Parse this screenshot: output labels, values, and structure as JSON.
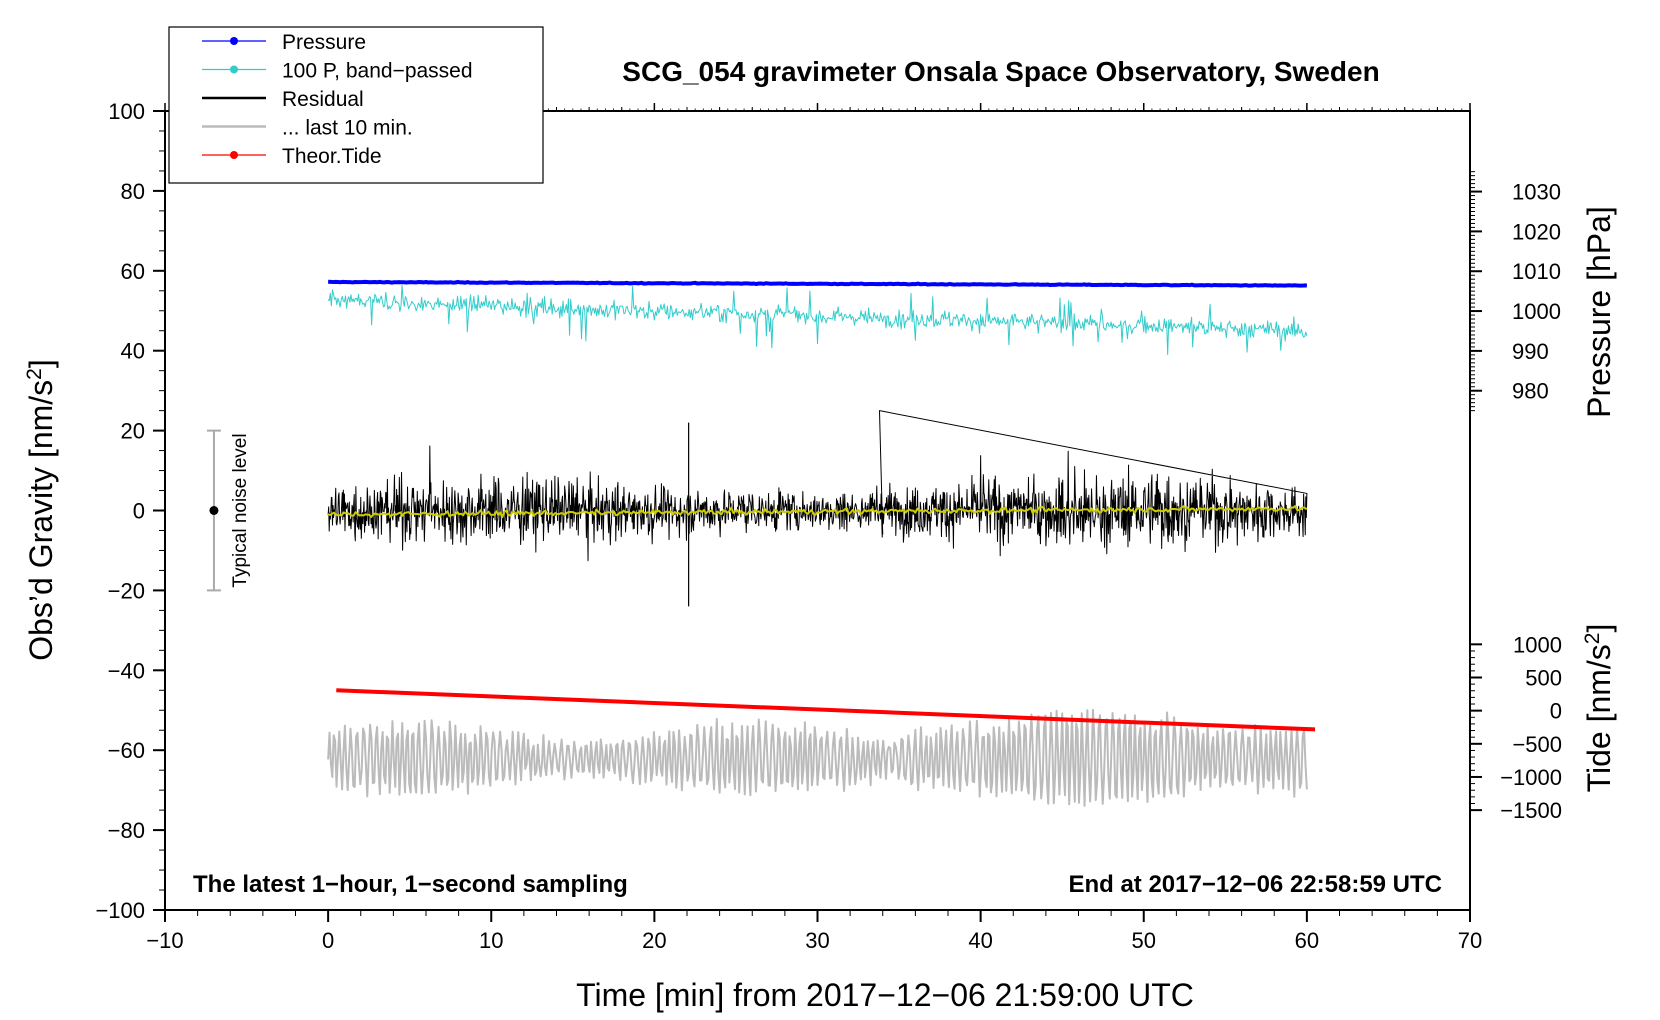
{
  "chart_data": {
    "type": "line",
    "title": "SCG_054 gravimeter Onsala Space Observatory, Sweden",
    "xlabel": "Time [min] from 2017−12−06 21:59:00 UTC",
    "ylabel": "Obs’d Gravity [nm/s²]",
    "ylabel_main": "Obs’d Gravity [nm/s",
    "ylabel_sup": "2",
    "ylabel_close": "]",
    "y2label_pressure": "Pressure [hPa]",
    "y2label_tide_main": "Tide [nm/s",
    "y2label_tide_sup": "2",
    "y2label_tide_close": "]",
    "xlim": [
      -10,
      70
    ],
    "ylim": [
      -100,
      100
    ],
    "pressure_axis": {
      "ticks": [
        980,
        990,
        1000,
        1010,
        1020,
        1030
      ],
      "labels": [
        "980",
        "990",
        "1000",
        "1010",
        "1020",
        "1030"
      ]
    },
    "tide_axis": {
      "ticks": [
        -1500,
        -1000,
        -500,
        0,
        500,
        1000
      ],
      "labels": [
        "−1500",
        "−1000",
        "−500",
        "0",
        "500",
        "1000"
      ]
    },
    "x_ticks": [
      -10,
      0,
      10,
      20,
      30,
      40,
      50,
      60,
      70
    ],
    "x_tick_labels": [
      "−10",
      "0",
      "10",
      "20",
      "30",
      "40",
      "50",
      "60",
      "70"
    ],
    "y_ticks": [
      -100,
      -80,
      -60,
      -40,
      -20,
      0,
      20,
      40,
      60,
      80,
      100
    ],
    "y_tick_labels": [
      "−100",
      "−80",
      "−60",
      "−40",
      "−20",
      "0",
      "20",
      "40",
      "60",
      "80",
      "100"
    ],
    "annotation_left": "The latest 1−hour, 1−second sampling",
    "annotation_right": "End at 2017−12−06 22:58:59 UTC",
    "noise_label": "Typical noise level",
    "noise_range": [
      -20,
      20
    ],
    "noise_x": -7,
    "legend": [
      {
        "label": "Pressure",
        "color": "#0000ff",
        "marker": true
      },
      {
        "label": "100 P, band−passed",
        "color": "#33cccc",
        "marker": true
      },
      {
        "label": "Residual",
        "color": "#000000",
        "marker": false
      },
      {
        "label": "... last 10 min.",
        "color": "#bbbbbb",
        "marker": false
      },
      {
        "label": "Theor.Tide",
        "color": "#ff0000",
        "marker": true
      }
    ],
    "series": [
      {
        "name": "Pressure",
        "color": "#0000ff",
        "x": [
          0,
          60
        ],
        "y": [
          57.2,
          56.3
        ]
      },
      {
        "name": "100 P, band−passed",
        "color": "#33cccc",
        "x_range": [
          0,
          60
        ],
        "trend": [
          52.5,
          45.0
        ],
        "noise_amplitude": 4
      },
      {
        "name": "Residual",
        "color": "#000000",
        "x_range": [
          0,
          60
        ],
        "trend": [
          0,
          0
        ],
        "noise_amplitude": 12,
        "extremes": [
          25,
          -24
        ]
      },
      {
        "name": "Residual smoothed",
        "color": "#cccc00",
        "x_range": [
          0,
          60
        ],
        "trend": [
          -1,
          0.5
        ]
      },
      {
        "name": "... last 10 min.",
        "color": "#bbbbbb",
        "x_range": [
          0,
          60
        ],
        "trend": [
          -62,
          -63
        ],
        "noise_amplitude": 10,
        "extremes": [
          -45,
          -79
        ]
      },
      {
        "name": "Theor.Tide",
        "color": "#ff0000",
        "x": [
          0.5,
          60.5
        ],
        "y": [
          -45,
          -54.8
        ]
      }
    ]
  }
}
